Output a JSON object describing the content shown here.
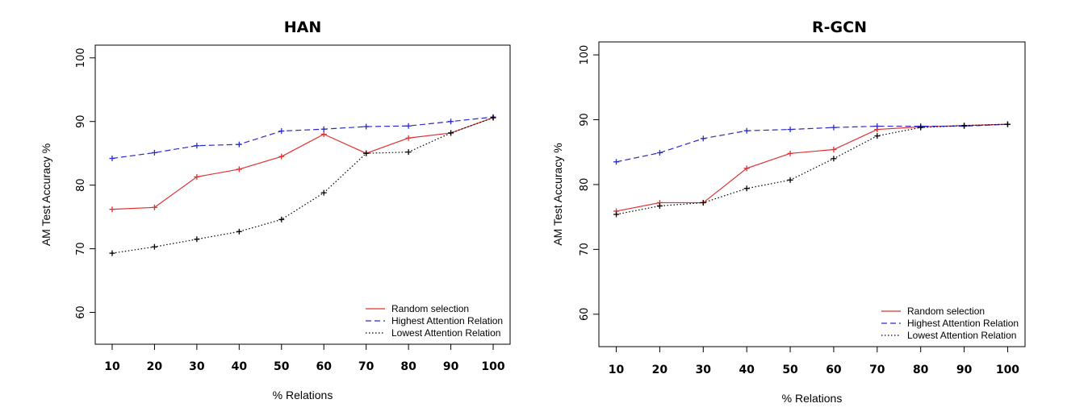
{
  "chart_data": [
    {
      "type": "line",
      "title": "HAN",
      "xlabel": "% Relations",
      "ylabel": "AM Test Accuracy %",
      "categories": [
        "10",
        "20",
        "30",
        "40",
        "50",
        "60",
        "70",
        "80",
        "90",
        "100"
      ],
      "x": [
        10,
        20,
        30,
        40,
        50,
        60,
        70,
        80,
        90,
        100
      ],
      "ylim": [
        60,
        100
      ],
      "yticks": [
        60,
        70,
        80,
        90,
        100
      ],
      "legend_position": "bottom-right",
      "grid": false,
      "series": [
        {
          "name": "Random selection",
          "color": "#e03030",
          "style": "solid",
          "values": [
            76.2,
            76.5,
            81.3,
            82.5,
            84.5,
            88.0,
            85.0,
            87.4,
            88.2,
            90.6
          ]
        },
        {
          "name": "Highest Attention Relation",
          "color": "#2a2acc",
          "style": "dashed",
          "values": [
            84.2,
            85.1,
            86.2,
            86.4,
            88.5,
            88.8,
            89.2,
            89.3,
            90.0,
            90.7
          ]
        },
        {
          "name": "Lowest Attention Relation",
          "color": "#000000",
          "style": "dotted",
          "values": [
            69.3,
            70.3,
            71.5,
            72.7,
            74.6,
            78.8,
            85.0,
            85.2,
            88.2,
            90.6
          ]
        }
      ]
    },
    {
      "type": "line",
      "title": "R-GCN",
      "xlabel": "% Relations",
      "ylabel": "AM Test Accuracy %",
      "categories": [
        "10",
        "20",
        "30",
        "40",
        "50",
        "60",
        "70",
        "80",
        "90",
        "100"
      ],
      "x": [
        10,
        20,
        30,
        40,
        50,
        60,
        70,
        80,
        90,
        100
      ],
      "ylim": [
        60,
        100
      ],
      "yticks": [
        60,
        70,
        80,
        90,
        100
      ],
      "legend_position": "bottom-right",
      "grid": false,
      "series": [
        {
          "name": "Random selection",
          "color": "#e03030",
          "style": "solid",
          "values": [
            75.9,
            77.2,
            77.2,
            82.5,
            84.8,
            85.4,
            88.5,
            88.9,
            89.1,
            89.3
          ]
        },
        {
          "name": "Highest Attention Relation",
          "color": "#2a2acc",
          "style": "dashed",
          "values": [
            83.5,
            84.9,
            87.1,
            88.3,
            88.5,
            88.8,
            89.0,
            89.0,
            89.0,
            89.3
          ]
        },
        {
          "name": "Lowest Attention Relation",
          "color": "#000000",
          "style": "dotted",
          "values": [
            75.4,
            76.7,
            77.2,
            79.4,
            80.7,
            84.0,
            87.5,
            88.8,
            89.1,
            89.3
          ]
        }
      ]
    }
  ]
}
